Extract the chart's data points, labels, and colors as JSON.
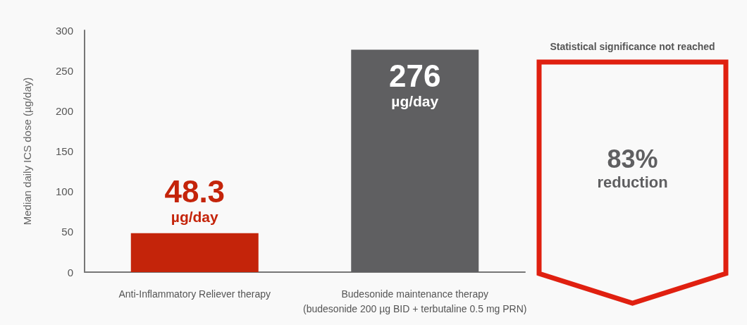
{
  "chart_data": {
    "type": "bar",
    "ylabel": "Median daily ICS dose (µg/day)",
    "categories": [
      "Anti-Inflammatory Reliever therapy",
      "Budesonide maintenance therapy\n(budesonide 200 µg BID + terbutaline 0.5 mg PRN)"
    ],
    "values": [
      48.3,
      276
    ],
    "colors": [
      "#c4240a",
      "#5f5f61"
    ],
    "value_labels": [
      "48.3\nµg/day",
      "276\nµg/day"
    ],
    "ylim": [
      0,
      300
    ],
    "yticks": [
      0,
      50,
      100,
      150,
      200,
      250,
      300
    ],
    "annotations": [
      "Statistical significance not reached",
      "83%\nreduction"
    ]
  }
}
